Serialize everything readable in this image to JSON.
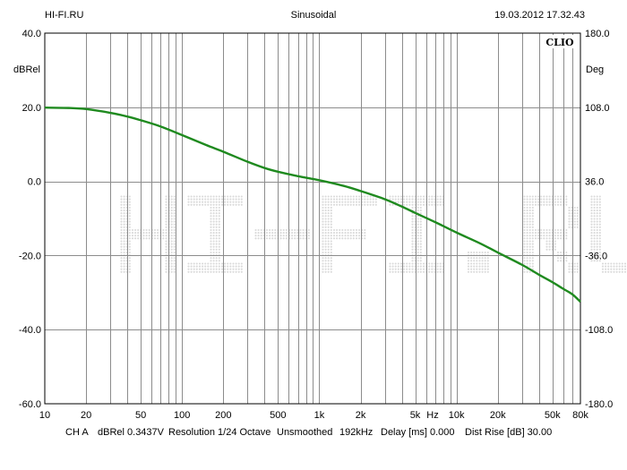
{
  "header": {
    "left": "HI-FI.RU",
    "center": "Sinusoidal",
    "right": "19.03.2012 17.32.43"
  },
  "brand": {
    "logo": "CLIO",
    "watermark": "HI-FI.RU"
  },
  "footer": {
    "channel": "CH A",
    "reference": "dBRel 0.3437V",
    "resolution": "Resolution 1/24 Octave",
    "smoothing": "Unsmoothed",
    "rate": "192kHz",
    "delay": "Delay [ms] 0.000",
    "dist_rise": "Dist Rise [dB] 30.00"
  },
  "colors": {
    "curve": "#1f8a1f",
    "grid": "#8c8c8c",
    "watermark": "#d9d9d9"
  },
  "chart_data": {
    "type": "line",
    "title": "",
    "xscale": "log",
    "xlim": [
      10,
      80000
    ],
    "ylim": [
      -60,
      40
    ],
    "y2lim": [
      -180,
      180
    ],
    "grid": true,
    "xlabel_unit": "Hz",
    "ylabel": "dBRel",
    "y2label": "Deg",
    "x_tick_labels": [
      "10",
      "20",
      "50",
      "100",
      "200",
      "500",
      "1k",
      "2k",
      "5k",
      "10k",
      "20k",
      "50k",
      "80k"
    ],
    "x_tick_values": [
      10,
      20,
      50,
      100,
      200,
      500,
      1000,
      2000,
      5000,
      10000,
      20000,
      50000,
      80000
    ],
    "y_tick_labels": [
      "40.0",
      "20.0",
      "0.0",
      "-20.0",
      "-40.0",
      "-60.0"
    ],
    "y_tick_values": [
      40,
      20,
      0,
      -20,
      -40,
      -60
    ],
    "y2_tick_labels": [
      "180.0",
      "108.0",
      "36.0",
      "-36.0",
      "-108.0",
      "-180.0"
    ],
    "series": [
      {
        "x": [
          10,
          15,
          20,
          30,
          40,
          50,
          70,
          100,
          150,
          200,
          300,
          400,
          500,
          700,
          1000,
          1500,
          2000,
          3000,
          4000,
          5000,
          7000,
          10000,
          15000,
          20000,
          30000,
          40000,
          50000,
          60000,
          70000,
          80000
        ],
        "y": [
          19.9,
          19.8,
          19.5,
          18.5,
          17.5,
          16.5,
          14.8,
          12.5,
          9.8,
          8.0,
          5.3,
          3.6,
          2.6,
          1.4,
          0.3,
          -1.2,
          -2.6,
          -4.8,
          -6.8,
          -8.5,
          -11.0,
          -13.8,
          -16.8,
          -19.2,
          -22.5,
          -25.2,
          -27.2,
          -29.0,
          -30.5,
          -32.5
        ]
      }
    ]
  }
}
